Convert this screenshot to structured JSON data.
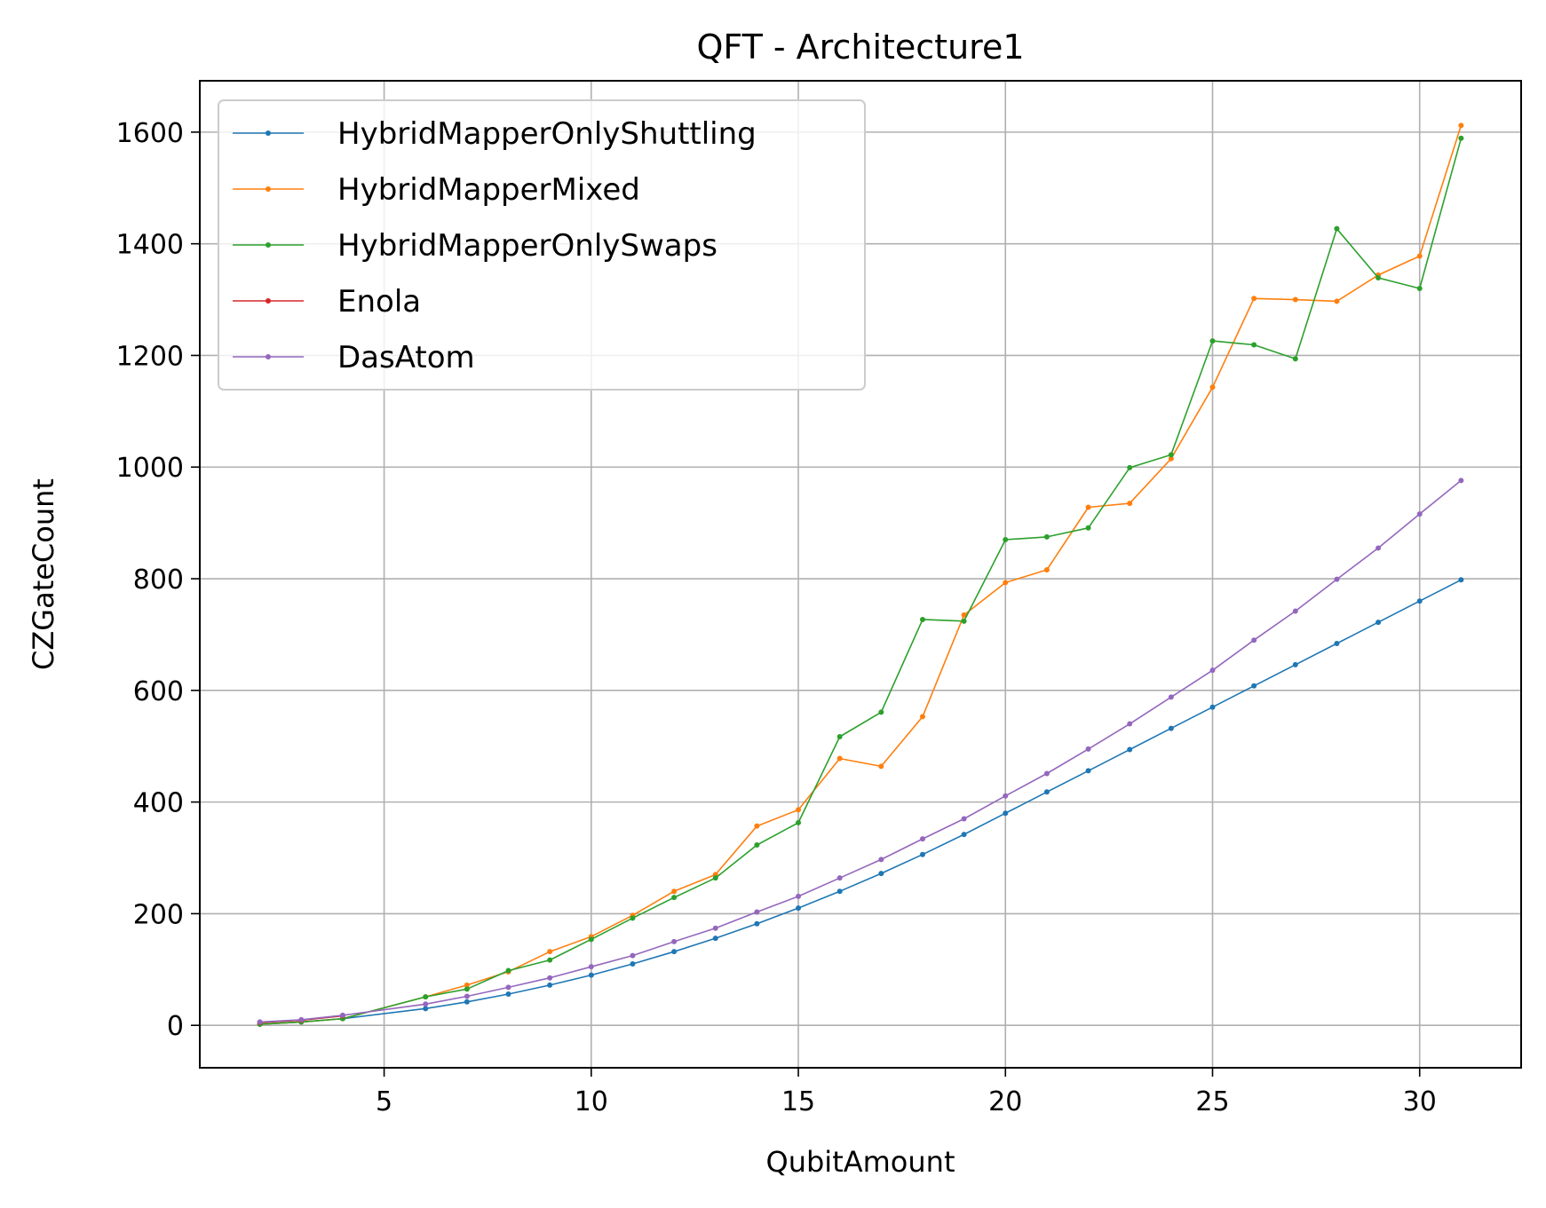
{
  "chart_data": {
    "type": "line",
    "title": "QFT - Architecture1",
    "xlabel": "QubitAmount",
    "ylabel": "CZGateCount",
    "xlim": [
      0.55,
      32.45
    ],
    "ylim": [
      -76,
      1692
    ],
    "xticks": [
      5,
      10,
      15,
      20,
      25,
      30
    ],
    "yticks": [
      0,
      200,
      400,
      600,
      800,
      1000,
      1200,
      1400,
      1600
    ],
    "grid": true,
    "legend_position": "upper-left",
    "series": [
      {
        "name": "HybridMapperOnlyShuttling",
        "color": "#1f77b4",
        "x": [
          2,
          3,
          4,
          6,
          7,
          8,
          9,
          10,
          11,
          12,
          13,
          14,
          15,
          16,
          17,
          18,
          19,
          20,
          21,
          22,
          23,
          24,
          25,
          26,
          27,
          28,
          29,
          30,
          31
        ],
        "y": [
          2,
          6,
          12,
          30,
          42,
          56,
          72,
          90,
          110,
          132,
          156,
          182,
          210,
          240,
          272,
          306,
          342,
          380,
          418,
          456,
          494,
          532,
          570,
          608,
          646,
          684,
          722,
          760,
          798
        ]
      },
      {
        "name": "HybridMapperMixed",
        "color": "#ff7f0e",
        "x": [
          2,
          3,
          4,
          6,
          7,
          8,
          9,
          10,
          11,
          12,
          13,
          14,
          15,
          16,
          17,
          18,
          19,
          20,
          21,
          22,
          23,
          24,
          25,
          26,
          27,
          28,
          29,
          30,
          31
        ],
        "y": [
          2,
          6,
          12,
          51,
          72,
          96,
          132,
          159,
          197,
          240,
          270,
          357,
          386,
          478,
          464,
          553,
          735,
          793,
          816,
          928,
          935,
          1015,
          1143,
          1302,
          1300,
          1297,
          1344,
          1378,
          1612
        ]
      },
      {
        "name": "HybridMapperOnlySwaps",
        "color": "#2ca02c",
        "x": [
          2,
          3,
          4,
          6,
          7,
          8,
          9,
          10,
          11,
          12,
          13,
          14,
          15,
          16,
          17,
          18,
          19,
          20,
          21,
          22,
          23,
          24,
          25,
          26,
          27,
          28,
          29,
          30,
          31
        ],
        "y": [
          2,
          6,
          12,
          51,
          65,
          98,
          117,
          154,
          192,
          229,
          264,
          323,
          363,
          517,
          561,
          727,
          724,
          870,
          875,
          891,
          999,
          1022,
          1226,
          1219,
          1194,
          1427,
          1339,
          1320,
          1589
        ]
      },
      {
        "name": "Enola",
        "color": "#d62728",
        "x": [
          2,
          3,
          4
        ],
        "y": [
          5,
          9,
          17
        ]
      },
      {
        "name": "DasAtom",
        "color": "#9467bd",
        "x": [
          2,
          3,
          4,
          6,
          7,
          8,
          9,
          10,
          11,
          12,
          13,
          14,
          15,
          16,
          17,
          18,
          19,
          20,
          21,
          22,
          23,
          24,
          25,
          26,
          27,
          28,
          29,
          30,
          31
        ],
        "y": [
          6,
          10,
          18,
          38,
          52,
          68,
          85,
          105,
          125,
          150,
          174,
          203,
          231,
          264,
          297,
          334,
          370,
          411,
          451,
          495,
          540,
          588,
          636,
          690,
          742,
          799,
          855,
          916,
          976
        ]
      }
    ]
  }
}
